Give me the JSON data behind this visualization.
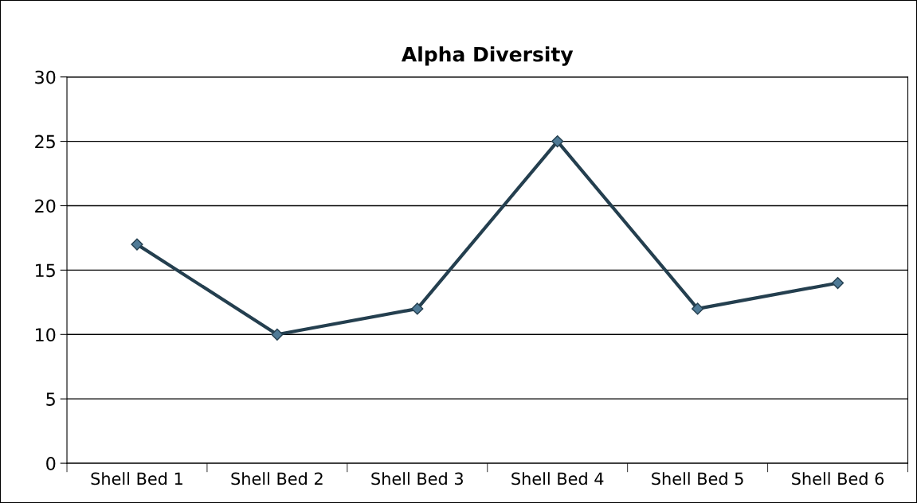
{
  "chart_data": {
    "type": "line",
    "title": "Alpha Diversity",
    "categories": [
      "Shell Bed 1",
      "Shell Bed 2",
      "Shell Bed 3",
      "Shell Bed 4",
      "Shell Bed 5",
      "Shell Bed 6"
    ],
    "series": [
      {
        "color": "#243f4f",
        "values": [
          17,
          10,
          12,
          25,
          12,
          14
        ]
      }
    ],
    "ylim": [
      0,
      30
    ],
    "yticks": [
      0,
      5,
      10,
      15,
      20,
      25,
      30
    ],
    "grid": "y",
    "marker": "diamond",
    "line_style": "solid"
  }
}
